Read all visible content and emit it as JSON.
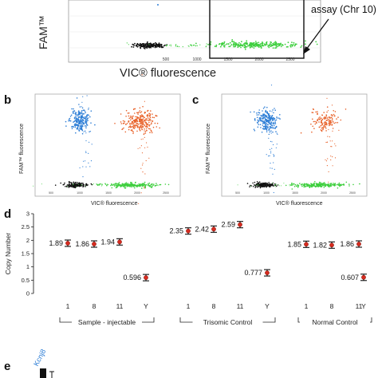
{
  "panels": {
    "a": {
      "ylabel": "FAM™",
      "xlabel": "VIC® fluorescence",
      "box_label": "assay (Chr 10)",
      "x_ticks": [
        "500",
        "1000",
        "1500",
        "2000",
        "2500"
      ]
    },
    "b": {
      "label": "b",
      "ylabel": "FAM™ fluorescence",
      "xlabel": "VIC® fluorescence"
    },
    "c": {
      "label": "c",
      "ylabel": "FAM™ fluorescence",
      "xlabel": "VIC® fluorescence"
    },
    "d": {
      "label": "d"
    },
    "e": {
      "label": "e",
      "gene": "Kcnj8"
    }
  },
  "chart_data": {
    "type": "scatter",
    "title": "",
    "ylabel": "Copy Number",
    "y_ticks": [
      0,
      0.5,
      1,
      1.5,
      2,
      2.5,
      3
    ],
    "ylim": [
      0,
      3
    ],
    "categories": [
      "1",
      "8",
      "11",
      "Y",
      "1",
      "8",
      "11",
      "Y",
      "1",
      "8",
      "11",
      "Y"
    ],
    "values": [
      1.89,
      1.86,
      1.94,
      0.596,
      2.35,
      2.42,
      2.59,
      0.777,
      1.85,
      1.82,
      1.86,
      0.607
    ],
    "labels": [
      "1.89",
      "1.86",
      "1.94",
      "0.596",
      "2.35",
      "2.42",
      "2.59",
      "0.777",
      "1.85",
      "1.82",
      "1.86",
      "0.607"
    ],
    "groups": [
      {
        "name": "Sample - injectable",
        "members": [
          0,
          1,
          2,
          3
        ]
      },
      {
        "name": "Trisomic Control",
        "members": [
          4,
          5,
          6,
          7
        ]
      },
      {
        "name": "Normal Control",
        "members": [
          8,
          9,
          10,
          11
        ]
      }
    ],
    "marker_color": "#d62b1f",
    "grid": false
  },
  "colors": {
    "fam_positive": "#2f7fd6",
    "double_positive": "#e8622a",
    "vic_positive": "#3fcf3f",
    "negative": "#111111"
  }
}
